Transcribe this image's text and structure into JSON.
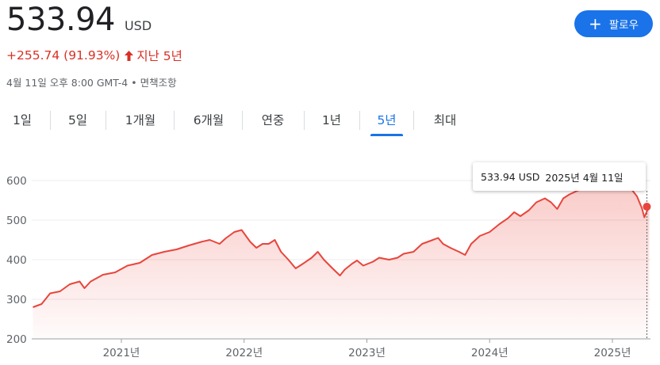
{
  "quote": {
    "price": "533.94",
    "currency": "USD",
    "change": "+255.74 (91.93%)",
    "change_period": "지난 5년",
    "timestamp": "4월 11일 오후 8:00 GMT-4 • 면책조항"
  },
  "actions": {
    "follow_label": "팔로우",
    "follow_icon": "plus-icon"
  },
  "tabs": [
    {
      "label": "1일"
    },
    {
      "label": "5일"
    },
    {
      "label": "1개월"
    },
    {
      "label": "6개월"
    },
    {
      "label": "연중"
    },
    {
      "label": "1년"
    },
    {
      "label": "5년",
      "active": true
    },
    {
      "label": "최대"
    }
  ],
  "tooltip": {
    "value": "533.94 USD",
    "date": "2025년 4월 11일"
  },
  "colors": {
    "accent": "#1a73e8",
    "negative_line": "#e8453c",
    "change_text": "#d93025"
  },
  "chart_data": {
    "type": "area",
    "ylim": [
      200,
      620
    ],
    "y_ticks": [
      "200",
      "300",
      "400",
      "500",
      "600"
    ],
    "x_ticks": [
      {
        "label": "2021년",
        "t": 2021.0
      },
      {
        "label": "2022년",
        "t": 2022.0
      },
      {
        "label": "2023년",
        "t": 2023.0
      },
      {
        "label": "2024년",
        "t": 2024.0
      },
      {
        "label": "2025년",
        "t": 2025.0
      }
    ],
    "xlim": [
      2020.27,
      2025.31
    ],
    "series": [
      {
        "points": [
          [
            2020.28,
            280
          ],
          [
            2020.35,
            288
          ],
          [
            2020.42,
            315
          ],
          [
            2020.5,
            320
          ],
          [
            2020.58,
            338
          ],
          [
            2020.66,
            345
          ],
          [
            2020.7,
            328
          ],
          [
            2020.75,
            345
          ],
          [
            2020.85,
            362
          ],
          [
            2020.95,
            368
          ],
          [
            2021.05,
            385
          ],
          [
            2021.15,
            392
          ],
          [
            2021.25,
            412
          ],
          [
            2021.35,
            420
          ],
          [
            2021.45,
            426
          ],
          [
            2021.55,
            436
          ],
          [
            2021.65,
            445
          ],
          [
            2021.72,
            450
          ],
          [
            2021.8,
            440
          ],
          [
            2021.85,
            454
          ],
          [
            2021.92,
            470
          ],
          [
            2021.98,
            475
          ],
          [
            2022.05,
            445
          ],
          [
            2022.1,
            430
          ],
          [
            2022.15,
            440
          ],
          [
            2022.2,
            440
          ],
          [
            2022.25,
            450
          ],
          [
            2022.3,
            420
          ],
          [
            2022.36,
            400
          ],
          [
            2022.42,
            378
          ],
          [
            2022.47,
            388
          ],
          [
            2022.55,
            405
          ],
          [
            2022.6,
            420
          ],
          [
            2022.65,
            400
          ],
          [
            2022.72,
            378
          ],
          [
            2022.78,
            360
          ],
          [
            2022.82,
            375
          ],
          [
            2022.88,
            390
          ],
          [
            2022.92,
            398
          ],
          [
            2022.97,
            385
          ],
          [
            2023.05,
            395
          ],
          [
            2023.1,
            405
          ],
          [
            2023.18,
            400
          ],
          [
            2023.25,
            405
          ],
          [
            2023.3,
            415
          ],
          [
            2023.38,
            420
          ],
          [
            2023.45,
            440
          ],
          [
            2023.52,
            448
          ],
          [
            2023.58,
            455
          ],
          [
            2023.62,
            440
          ],
          [
            2023.68,
            430
          ],
          [
            2023.75,
            420
          ],
          [
            2023.8,
            412
          ],
          [
            2023.85,
            440
          ],
          [
            2023.92,
            460
          ],
          [
            2024.0,
            470
          ],
          [
            2024.08,
            490
          ],
          [
            2024.15,
            505
          ],
          [
            2024.2,
            520
          ],
          [
            2024.25,
            510
          ],
          [
            2024.32,
            525
          ],
          [
            2024.38,
            545
          ],
          [
            2024.45,
            555
          ],
          [
            2024.5,
            545
          ],
          [
            2024.55,
            528
          ],
          [
            2024.6,
            555
          ],
          [
            2024.65,
            565
          ],
          [
            2024.72,
            575
          ],
          [
            2024.8,
            583
          ],
          [
            2024.85,
            585
          ],
          [
            2024.92,
            588
          ],
          [
            2025.0,
            590
          ],
          [
            2025.08,
            593
          ],
          [
            2025.15,
            580
          ],
          [
            2025.2,
            560
          ],
          [
            2025.24,
            530
          ],
          [
            2025.26,
            507
          ],
          [
            2025.28,
            522
          ],
          [
            2025.3,
            533.94
          ]
        ]
      }
    ],
    "grid": true
  }
}
